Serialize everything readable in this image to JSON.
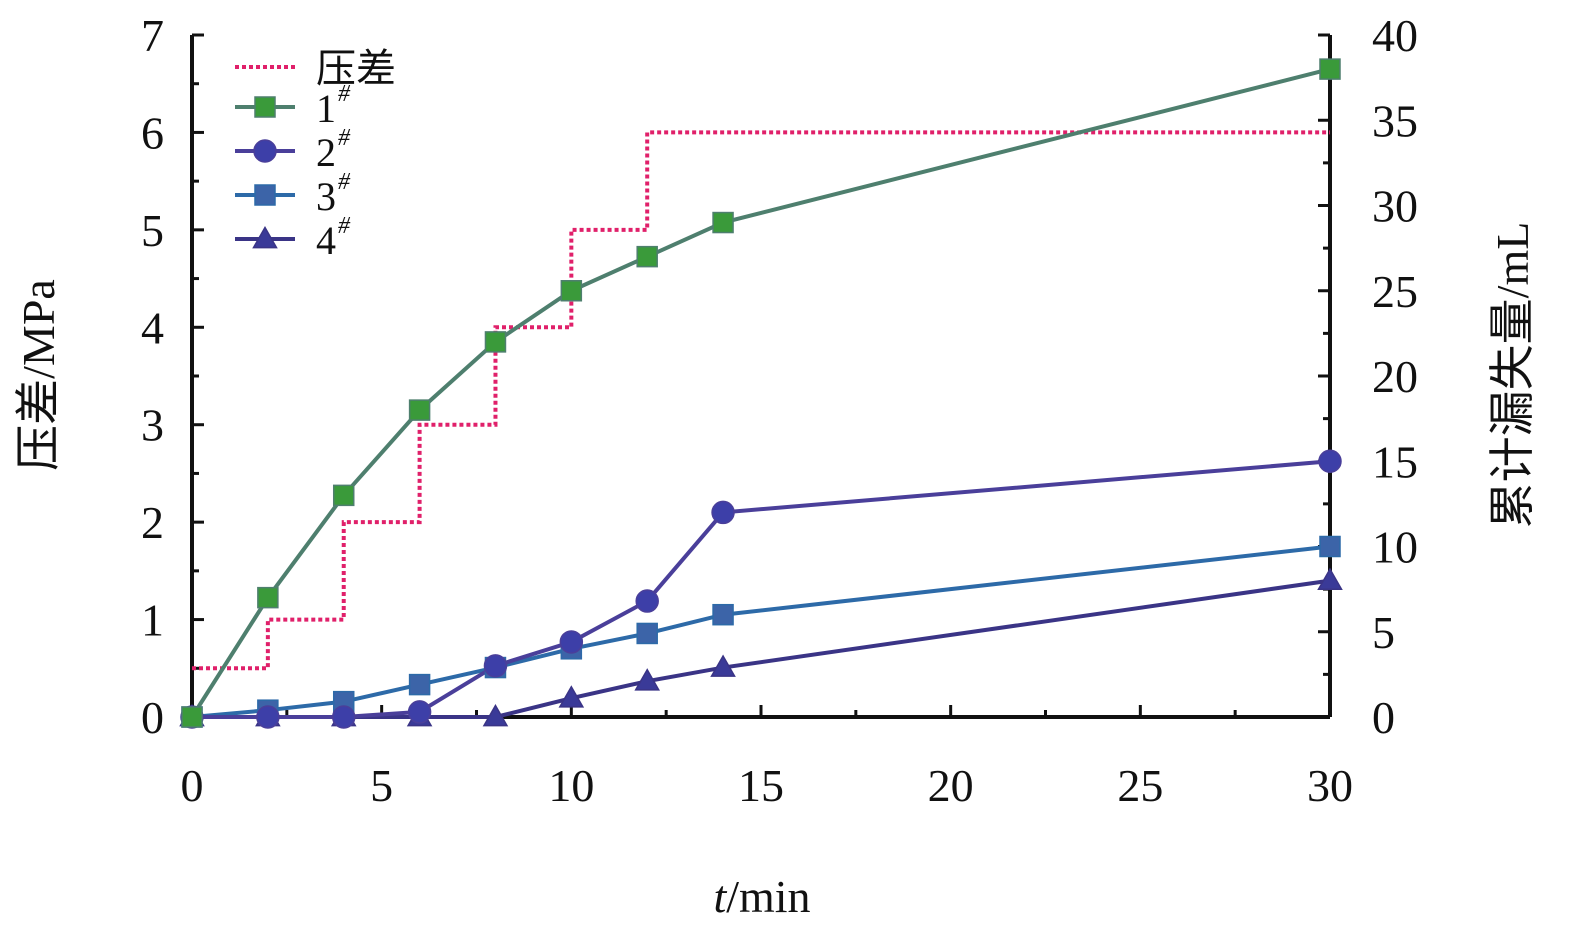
{
  "chart_data": {
    "type": "line",
    "xlabel_italic": "t",
    "xlabel_rest": "/min",
    "ylabel_left": "压差/MPa",
    "ylabel_right": "累计漏失量/mL",
    "xlim": [
      0,
      30
    ],
    "ylim_left": [
      0,
      7
    ],
    "ylim_right": [
      0,
      40
    ],
    "x_ticks": [
      "0",
      "5",
      "10",
      "15",
      "20",
      "25",
      "30"
    ],
    "y_left_ticks": [
      "0",
      "1",
      "2",
      "3",
      "4",
      "5",
      "6",
      "7"
    ],
    "y_right_ticks": [
      "0",
      "5",
      "10",
      "15",
      "20",
      "25",
      "30",
      "35",
      "40"
    ],
    "legend_position": "top-left",
    "pressure": {
      "name": "压差",
      "axis": "left",
      "style": "dotted-step",
      "color": "#e0206a",
      "x": [
        0,
        2,
        2,
        4,
        4,
        6,
        6,
        8,
        8,
        10,
        10,
        12,
        12,
        30
      ],
      "y": [
        0.5,
        0.5,
        1,
        1,
        2,
        2,
        3,
        3,
        4,
        4,
        5,
        5,
        6,
        6
      ]
    },
    "series": [
      {
        "name": "1",
        "sup": "#",
        "axis": "right",
        "marker": "square",
        "line_color": "#4e7f6e",
        "marker_color": "#3a9a3a",
        "x": [
          0,
          2,
          4,
          6,
          8,
          10,
          12,
          14,
          30
        ],
        "y": [
          0,
          7,
          13,
          18,
          22,
          25,
          27,
          29,
          38
        ]
      },
      {
        "name": "2",
        "sup": "#",
        "axis": "right",
        "marker": "circle",
        "line_color": "#4a3f9a",
        "marker_color": "#3d3fa8",
        "x": [
          0,
          2,
          4,
          6,
          8,
          10,
          12,
          14,
          30
        ],
        "y": [
          0,
          0,
          0,
          0.3,
          3,
          4.4,
          6.8,
          12,
          15
        ]
      },
      {
        "name": "3",
        "sup": "#",
        "axis": "right",
        "marker": "square",
        "line_color": "#2d6aa8",
        "marker_color": "#3c64a8",
        "x": [
          0,
          2,
          4,
          6,
          8,
          10,
          12,
          14,
          30
        ],
        "y": [
          0,
          0.4,
          0.9,
          1.9,
          2.9,
          4,
          4.9,
          6,
          10
        ]
      },
      {
        "name": "4",
        "sup": "#",
        "axis": "right",
        "marker": "triangle",
        "line_color": "#3a3486",
        "marker_color": "#3a3a98",
        "x": [
          0,
          2,
          4,
          6,
          8,
          10,
          12,
          14,
          30
        ],
        "y": [
          0,
          0,
          0,
          0,
          0,
          1.1,
          2.1,
          2.9,
          8
        ]
      }
    ]
  }
}
